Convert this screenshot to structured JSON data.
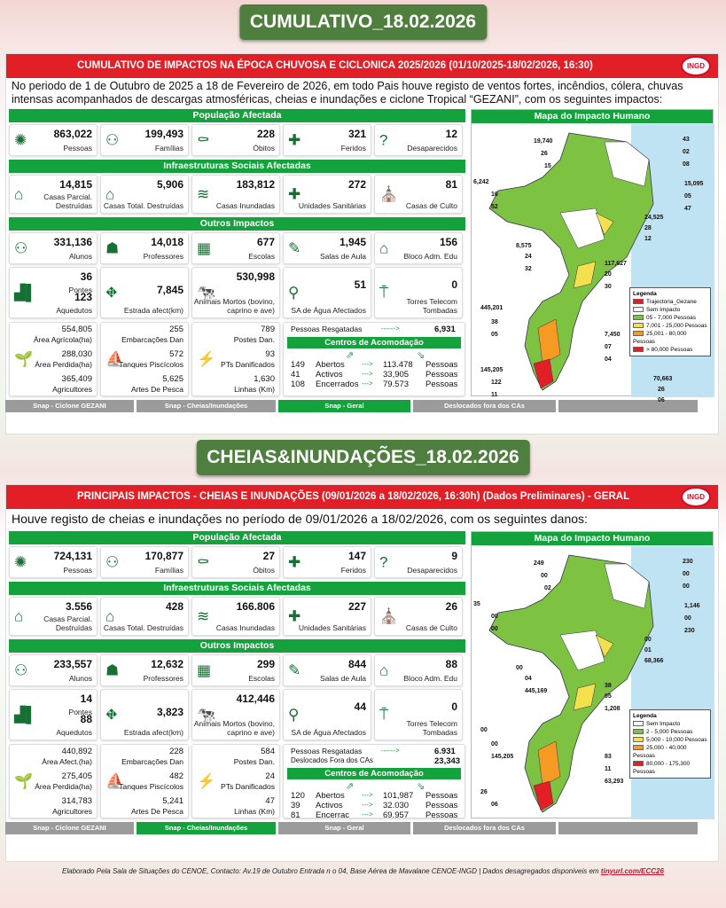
{
  "banner1": "CUMULATIVO_18.02.2026",
  "banner2": "CHEIAS&INUNDAÇÕES_18.02.2026",
  "p1": {
    "header": "CUMULATIVO DE IMPACTOS NA ÉPOCA CHUVOSA E CICLONICA 2025/2026 (01/10/2025-18/02/2026, 16:30)",
    "intro": "No periodo de 1 de Outubro de 2025 a 18 de Fevereiro  de 2026, em todo Pais houve registo de ventos fortes, incêndios, cólera, chuvas intensas acompanhados de descargas atmosféricas, cheias e inundações e ciclone Tropical “GEZANI”,  com os seguintes impactos:",
    "sec_pop": "População Afectada",
    "sec_infra": "Infraestruturas Sociais Afectadas",
    "sec_outros": "Outros Impactos",
    "pop": [
      {
        "v": "863,022",
        "l": "Pessoas",
        "icon": "people-burst-icon"
      },
      {
        "v": "199,493",
        "l": "Famílias",
        "icon": "family-icon"
      },
      {
        "v": "228",
        "l": "Óbitos",
        "icon": "death-icon"
      },
      {
        "v": "321",
        "l": "Feridos",
        "icon": "injured-icon"
      },
      {
        "v": "12",
        "l": "Desaparecidos",
        "icon": "missing-icon"
      }
    ],
    "infra": [
      {
        "v": "14,815",
        "l": "Casas Parcial. Destruídas"
      },
      {
        "v": "5,906",
        "l": "Casas Total. Destruídas"
      },
      {
        "v": "183,812",
        "l": "Casas Inundadas"
      },
      {
        "v": "272",
        "l": "Unidades Sanitárias"
      },
      {
        "v": "81",
        "l": "Casas de Culto"
      }
    ],
    "out1": [
      {
        "v": "331,136",
        "l": "Alunos"
      },
      {
        "v": "14,018",
        "l": "Professores"
      },
      {
        "v": "677",
        "l": "Escolas"
      },
      {
        "v": "1,945",
        "l": "Salas de Aula"
      },
      {
        "v": "156",
        "l": "Bloco Adm. Edu"
      }
    ],
    "pontes_v": "36",
    "pontes_l": "Pontes",
    "aqued_v": "123",
    "aqued_l": "Aquedutos",
    "estrada_v": "7,845",
    "estrada_l": "Estrada afect(km)",
    "animais_v": "530,998",
    "animais_l": "Animais Mortos (bovino, caprino e ave)",
    "sa_v": "51",
    "sa_l": "SA de Água Afectados",
    "torres_v": "0",
    "torres_l": "Torres Telecom Tombadas",
    "agri": [
      {
        "v": "554,805",
        "l": "Área Agrícola(ha)"
      },
      {
        "v": "288,030",
        "l": "Área Perdida(ha)"
      },
      {
        "v": "365,409",
        "l": "Agricultores"
      }
    ],
    "pesca": [
      {
        "v": "255",
        "l": "Embarcações Dan"
      },
      {
        "v": "572",
        "l": "Tanques Piscícolos"
      },
      {
        "v": "5,625",
        "l": "Artes De Pesca"
      }
    ],
    "postes": [
      {
        "v": "789",
        "l": "Postes Dan."
      },
      {
        "v": "93",
        "l": "PTs Danificados"
      },
      {
        "v": "1,630",
        "l": "Linhas (Km)"
      }
    ],
    "resgate_l": "Pessoas Resgatadas",
    "resgate_v": "6,931",
    "centros_title": "Centros de Acomodação",
    "centros": [
      {
        "n": "149",
        "s": "Abertos",
        "p": "113.478",
        "u": "Pessoas"
      },
      {
        "n": "41",
        "s": "Activos",
        "p": "33,905",
        "u": "Pessoas"
      },
      {
        "n": "108",
        "s": "Encerrados",
        "p": "79.573",
        "u": "Pessoas"
      }
    ],
    "map_title": "Mapa do Impacto Humano",
    "legend_title": "Legenda",
    "legend": [
      {
        "t": "Trajectoria_Gezane",
        "c": "#e21f26"
      },
      {
        "t": "Sem Impacto",
        "c": "#ffffff"
      },
      {
        "t": "05 - 7,000 Pessoas",
        "c": "#7ec242"
      },
      {
        "t": "7,001 - 25,000 Pessoas",
        "c": "#f4e04d"
      },
      {
        "t": "25,001 - 80,000 Pessoas",
        "c": "#f59a23"
      },
      {
        "t": "> 80,000 Pessoas",
        "c": "#e21f26"
      }
    ],
    "map_labels": [
      "19,740",
      "26",
      "15",
      "43",
      "02",
      "08",
      "6,242",
      "16",
      "52",
      "15,095",
      "05",
      "47",
      "24,525",
      "28",
      "12",
      "8,575",
      "24",
      "32",
      "117,627",
      "20",
      "30",
      "445,201",
      "38",
      "05",
      "7,450",
      "07",
      "04",
      "145,205",
      "122",
      "11",
      "70,663",
      "26",
      "06"
    ],
    "tabs": [
      "Snap - Ciclone GEZANI",
      "Snap - Cheias/Inundações",
      "Snap - Geral",
      "Deslocados fora dos CAs",
      ""
    ]
  },
  "p2": {
    "header": "PRINCIPAIS IMPACTOS - CHEIAS E INUNDAÇÕES (09/01/2026 a 18/02/2026, 16:30h) (Dados Preliminares) - GERAL",
    "intro": "Houve registo de cheias e inundações no período de 09/01/2026 a 18/02/2026, com os seguintes danos:",
    "sec_pop": "População Afectada",
    "sec_infra": "Infraestruturas Sociais Afectadas",
    "sec_outros": "Outros Impactos",
    "pop": [
      {
        "v": "724,131",
        "l": "Pessoas"
      },
      {
        "v": "170,877",
        "l": "Famílias"
      },
      {
        "v": "27",
        "l": "Óbitos"
      },
      {
        "v": "147",
        "l": "Feridos"
      },
      {
        "v": "9",
        "l": "Desaparecidos"
      }
    ],
    "infra": [
      {
        "v": "3.556",
        "l": "Casas Parcial. Destruídas"
      },
      {
        "v": "428",
        "l": "Casas Total. Destruídas"
      },
      {
        "v": "166.806",
        "l": "Casas Inundadas"
      },
      {
        "v": "227",
        "l": "Unidades Sanitárias"
      },
      {
        "v": "26",
        "l": "Casas de Culto"
      }
    ],
    "out1": [
      {
        "v": "233,557",
        "l": "Alunos"
      },
      {
        "v": "12,632",
        "l": "Professores"
      },
      {
        "v": "299",
        "l": "Escolas"
      },
      {
        "v": "844",
        "l": "Salas de Aula"
      },
      {
        "v": "88",
        "l": "Bloco Adm. Edu"
      }
    ],
    "pontes_v": "14",
    "pontes_l": "Pontes",
    "aqued_v": "88",
    "aqued_l": "Aquedutos",
    "estrada_v": "3,823",
    "estrada_l": "Estrada afect(km)",
    "animais_v": "412,446",
    "animais_l": "Animais Mortos (bovino, caprino e ave)",
    "sa_v": "44",
    "sa_l": "SA de Água Afectados",
    "torres_v": "0",
    "torres_l": "Torres Telecom Tombadas",
    "agri": [
      {
        "v": "440,892",
        "l": "Área Afect.(ha)"
      },
      {
        "v": "275,405",
        "l": "Área Perdida(ha)"
      },
      {
        "v": "314,783",
        "l": "Agricultores"
      }
    ],
    "pesca": [
      {
        "v": "228",
        "l": "Embarcações Dan"
      },
      {
        "v": "482",
        "l": "Tanques Piscícolos"
      },
      {
        "v": "5,241",
        "l": "Artes De Pesca"
      }
    ],
    "postes": [
      {
        "v": "584",
        "l": "Postes Dan."
      },
      {
        "v": "24",
        "l": "PTs Danificados"
      },
      {
        "v": "47",
        "l": "Linhas (Km)"
      }
    ],
    "resgate_l": "Pessoas Resgatadas",
    "resgate_v": "6.931",
    "desloc_l": "Deslocados Fora dos CAs",
    "desloc_v": "23,343",
    "centros_title": "Centros de Acomodação",
    "centros": [
      {
        "n": "120",
        "s": "Abertos",
        "p": "101,987",
        "u": "Pessoas"
      },
      {
        "n": "39",
        "s": "Activos",
        "p": "32.030",
        "u": "Pessoas"
      },
      {
        "n": "81",
        "s": "Encerrac",
        "p": "69.957",
        "u": "Pessoas"
      }
    ],
    "map_title": "Mapa do Impacto Humano",
    "legend_title": "Legenda",
    "legend": [
      {
        "t": "Sem Impacto",
        "c": "#ffffff"
      },
      {
        "t": "2 - 5,000 Pessoas",
        "c": "#7ec242"
      },
      {
        "t": "5,000 - 10,000 Pessoas",
        "c": "#f4e04d"
      },
      {
        "t": "25,000 - 40,000 Pessoas",
        "c": "#f59a23"
      },
      {
        "t": "80,000 - 175,300 Pessoas",
        "c": "#e21f26"
      }
    ],
    "map_labels": [
      "249",
      "00",
      "02",
      "230",
      "00",
      "00",
      "35",
      "00",
      "00",
      "1,146",
      "00",
      "230",
      "00",
      "01",
      "68,366",
      "00",
      "04",
      "445,169",
      "38",
      "05",
      "1,208",
      "00",
      "00",
      "145,205",
      "83",
      "11",
      "63,293",
      "26",
      "06"
    ],
    "tabs": [
      "Snap - Ciclone GEZANI",
      "Snap - Cheias/Inundações",
      "Snap - Geral",
      "Deslocados fora dos CAs",
      ""
    ]
  },
  "footer": "Elaborado Pela Sala de Situações do CENOE, Contacto: Av.19 de Outubro Entrada n o 04, Base Aérea de Mavalane CENOE-INGD | Dados desagregados disponiveis em",
  "footer_link": "tinyurl.com/ECC26",
  "logo_text": "INGD"
}
